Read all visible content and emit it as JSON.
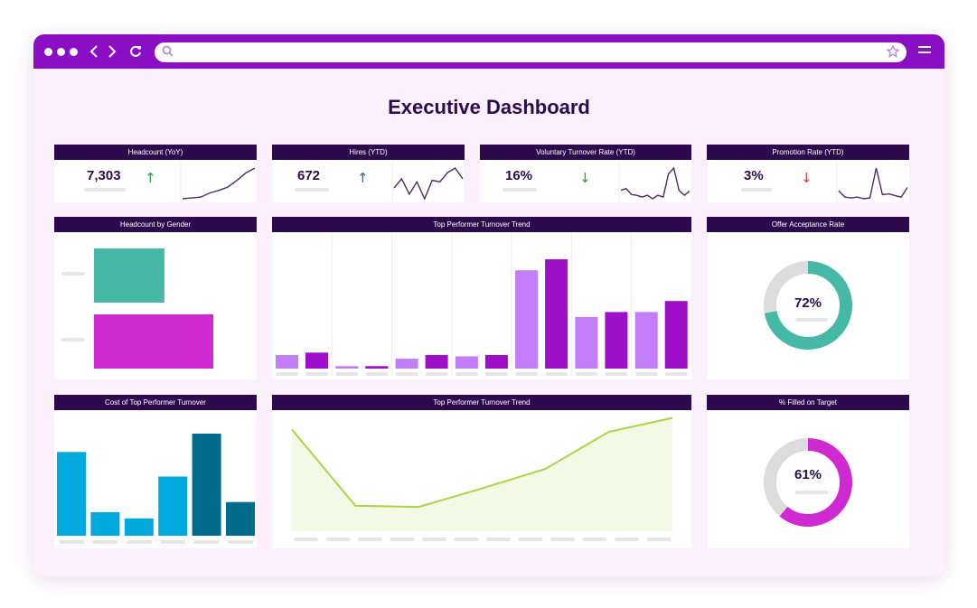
{
  "browser": {
    "icons": [
      "dot-icon",
      "back-icon",
      "forward-icon",
      "reload-icon",
      "search-icon",
      "star-icon",
      "menu-icon"
    ],
    "accent": "#8a0fc4"
  },
  "dashboard": {
    "title": "Executive Dashboard",
    "colors": {
      "header": "#2d0a4d",
      "purple_light": "#c17ef8",
      "purple_dark": "#9d0fc8",
      "teal": "#45b9a5",
      "magenta": "#cf2ad2",
      "cyan": "#00a9dd",
      "navy_teal": "#006b8c",
      "lime": "#a9d543",
      "lime_fill": "#f3f9e4",
      "spark": "#4f2a65",
      "up_green": "#2e9d3f",
      "up_blue": "#1c6fb0",
      "down_red": "#e03a3a"
    },
    "kpis": [
      {
        "title": "Headcount (YoY)",
        "value": "7,303",
        "trend": "up",
        "arrow": "↑",
        "spark": [
          1,
          2,
          3,
          8,
          11,
          15,
          23,
          32,
          38
        ]
      },
      {
        "title": "Hires (YTD)",
        "value": "672",
        "trend": "up",
        "arrow": "↑",
        "spark": [
          18,
          24,
          14,
          22,
          11,
          23,
          22,
          28,
          31,
          24
        ]
      },
      {
        "title": "Voluntary Turnover Rate (YTD)",
        "value": "16%",
        "trend": "down",
        "arrow": "↓",
        "spark": [
          14,
          16,
          9,
          8,
          6,
          8,
          4,
          8,
          6,
          33,
          40,
          14,
          8,
          13
        ]
      },
      {
        "title": "Promotion Rate (YTD)",
        "value": "3%",
        "trend": "down",
        "arrow": "↓",
        "spark": [
          12,
          4,
          3,
          4,
          2,
          3,
          40,
          7,
          8,
          6,
          4,
          16
        ]
      }
    ],
    "gender": {
      "title": "Headcount by Gender",
      "values": [
        59,
        100
      ],
      "colors": [
        "#45b9a5",
        "#cf2ad2"
      ]
    },
    "turnover_bars": {
      "title": "Top Performer Turnover Trend",
      "pairs": [
        [
          11,
          13
        ],
        [
          2,
          2
        ],
        [
          8,
          11
        ],
        [
          10,
          11
        ],
        [
          80,
          89
        ],
        [
          42,
          46
        ],
        [
          46,
          55
        ]
      ],
      "ymax": 100
    },
    "offer_acceptance": {
      "title": "Offer Acceptance Rate",
      "percent": 72,
      "label": "72%"
    },
    "cost": {
      "title": "Cost of Top Performer Turnover",
      "values": [
        82,
        23,
        17,
        58,
        100,
        33
      ],
      "colors": [
        "#00a9dd",
        "#00a9dd",
        "#00a9dd",
        "#00a9dd",
        "#006b8c",
        "#006b8c"
      ]
    },
    "turnover_line": {
      "title": "Top Performer Turnover Trend",
      "values": [
        88,
        22,
        21,
        37,
        54,
        86,
        98
      ]
    },
    "filled_target": {
      "title": "% Filled on Target",
      "percent": 61,
      "label": "61%"
    }
  }
}
